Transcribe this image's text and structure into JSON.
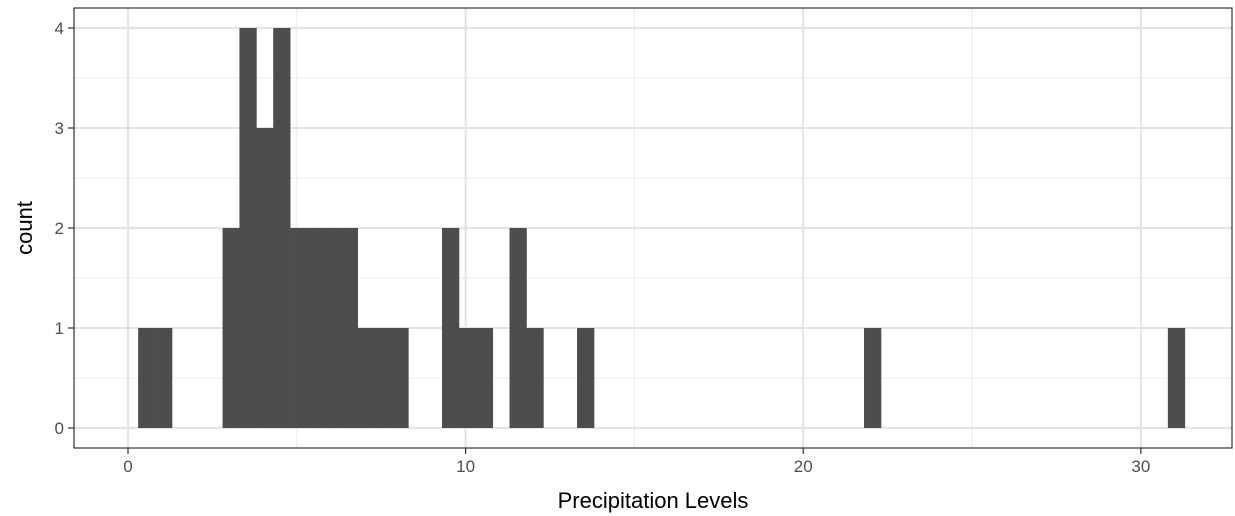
{
  "chart_data": {
    "type": "bar",
    "subtype": "histogram",
    "title": "",
    "xlabel": "Precipitation Levels",
    "ylabel": "count",
    "xlim": [
      -1.6,
      32.7
    ],
    "ylim": [
      -0.2,
      4.2
    ],
    "xticks": [
      0,
      10,
      20,
      30
    ],
    "yticks": [
      0,
      1,
      2,
      3,
      4
    ],
    "grid": true,
    "bar_color": "#4d4d4d",
    "bins": [
      {
        "x0": 0.3,
        "x1": 0.8,
        "count": 1
      },
      {
        "x0": 0.8,
        "x1": 1.3,
        "count": 1
      },
      {
        "x0": 2.8,
        "x1": 3.3,
        "count": 2
      },
      {
        "x0": 3.3,
        "x1": 3.8,
        "count": 4
      },
      {
        "x0": 3.8,
        "x1": 4.3,
        "count": 3
      },
      {
        "x0": 4.3,
        "x1": 4.8,
        "count": 4
      },
      {
        "x0": 4.8,
        "x1": 5.3,
        "count": 2
      },
      {
        "x0": 5.3,
        "x1": 5.8,
        "count": 2
      },
      {
        "x0": 5.8,
        "x1": 6.3,
        "count": 2
      },
      {
        "x0": 6.3,
        "x1": 6.8,
        "count": 2
      },
      {
        "x0": 6.8,
        "x1": 7.3,
        "count": 1
      },
      {
        "x0": 7.3,
        "x1": 7.8,
        "count": 1
      },
      {
        "x0": 7.8,
        "x1": 8.3,
        "count": 1
      },
      {
        "x0": 9.3,
        "x1": 9.8,
        "count": 2
      },
      {
        "x0": 9.8,
        "x1": 10.3,
        "count": 1
      },
      {
        "x0": 10.3,
        "x1": 10.8,
        "count": 1
      },
      {
        "x0": 11.3,
        "x1": 11.8,
        "count": 2
      },
      {
        "x0": 11.8,
        "x1": 12.3,
        "count": 1
      },
      {
        "x0": 13.3,
        "x1": 13.8,
        "count": 1
      },
      {
        "x0": 21.8,
        "x1": 22.3,
        "count": 1
      },
      {
        "x0": 30.8,
        "x1": 31.3,
        "count": 1
      }
    ]
  }
}
